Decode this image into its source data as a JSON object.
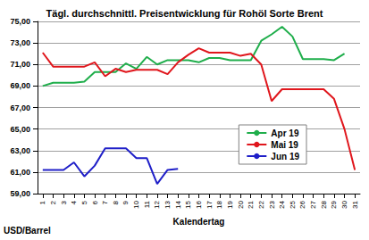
{
  "chart_data": {
    "type": "line",
    "title": "Tägl. durchschnittl. Preisentwicklung für Rohöl Sorte Brent",
    "x_label": "Kalendertag",
    "y_label": "USD/Barrel",
    "categories": [
      "1",
      "2",
      "3",
      "4",
      "5",
      "6",
      "7",
      "8",
      "9",
      "10",
      "11",
      "12",
      "13",
      "14",
      "15",
      "16",
      "17",
      "18",
      "19",
      "20",
      "21",
      "22",
      "23",
      "24",
      "25",
      "26",
      "27",
      "28",
      "29",
      "30",
      "31"
    ],
    "series": [
      {
        "name": "Apr 19",
        "color": "#1fae4b",
        "values": [
          69.0,
          69.3,
          69.3,
          69.3,
          69.4,
          70.3,
          70.3,
          70.3,
          71.1,
          70.6,
          71.7,
          71.0,
          71.4,
          71.4,
          71.4,
          71.2,
          71.6,
          71.6,
          71.4,
          71.4,
          71.4,
          73.2,
          73.8,
          74.5,
          73.6,
          71.5,
          71.5,
          71.5,
          71.4,
          72.0,
          null
        ]
      },
      {
        "name": "Mai 19",
        "color": "#e0161c",
        "values": [
          72.1,
          70.8,
          70.8,
          70.8,
          70.8,
          71.2,
          69.9,
          70.6,
          70.3,
          70.5,
          70.5,
          70.5,
          70.1,
          71.2,
          71.9,
          72.5,
          72.1,
          72.1,
          72.1,
          71.8,
          72.0,
          71.0,
          67.6,
          68.7,
          68.7,
          68.7,
          68.7,
          68.7,
          67.8,
          65.0,
          61.2
        ]
      },
      {
        "name": "Jun 19",
        "color": "#1f1fc8",
        "values": [
          61.2,
          61.2,
          61.2,
          61.9,
          60.6,
          61.6,
          63.2,
          63.2,
          63.2,
          62.3,
          62.3,
          59.9,
          61.2,
          61.3,
          null,
          null,
          null,
          null,
          null,
          null,
          null,
          null,
          null,
          null,
          null,
          null,
          null,
          null,
          null,
          null,
          null
        ]
      }
    ],
    "ylim": [
      59,
      75
    ],
    "yticks": [
      {
        "value": 59,
        "label": "59,00"
      },
      {
        "value": 61,
        "label": "61,00"
      },
      {
        "value": 63,
        "label": "63,00"
      },
      {
        "value": 65,
        "label": "65,00"
      },
      {
        "value": 67,
        "label": "67,00"
      },
      {
        "value": 69,
        "label": "69,00"
      },
      {
        "value": 71,
        "label": "71,00"
      },
      {
        "value": 73,
        "label": "73,00"
      },
      {
        "value": 75,
        "label": "75,00"
      }
    ],
    "grid": true,
    "legend": "lower right",
    "marker": "none"
  }
}
